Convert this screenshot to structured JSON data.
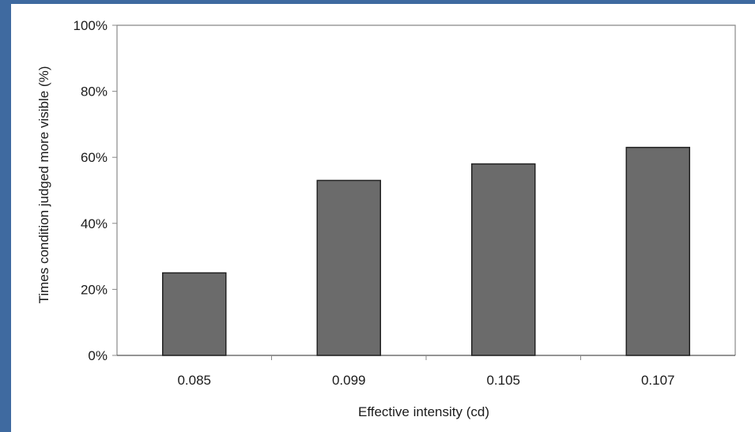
{
  "chart_data": {
    "type": "bar",
    "title": "",
    "xlabel": "Effective intensity (cd)",
    "ylabel": "Times condition judged more visible (%)",
    "categories": [
      "0.085",
      "0.099",
      "0.105",
      "0.107"
    ],
    "values": [
      25,
      53,
      58,
      63
    ],
    "ylim": [
      0,
      100
    ],
    "yticks": [
      "0%",
      "20%",
      "40%",
      "60%",
      "80%",
      "100%"
    ],
    "ytick_values": [
      0,
      20,
      40,
      60,
      80,
      100
    ],
    "grid": false,
    "legend": "none",
    "colors": {
      "bar_fill": "#6b6b6b",
      "bar_stroke": "#222222",
      "axis": "#888888",
      "background_frame": "#3f6aa0"
    }
  }
}
